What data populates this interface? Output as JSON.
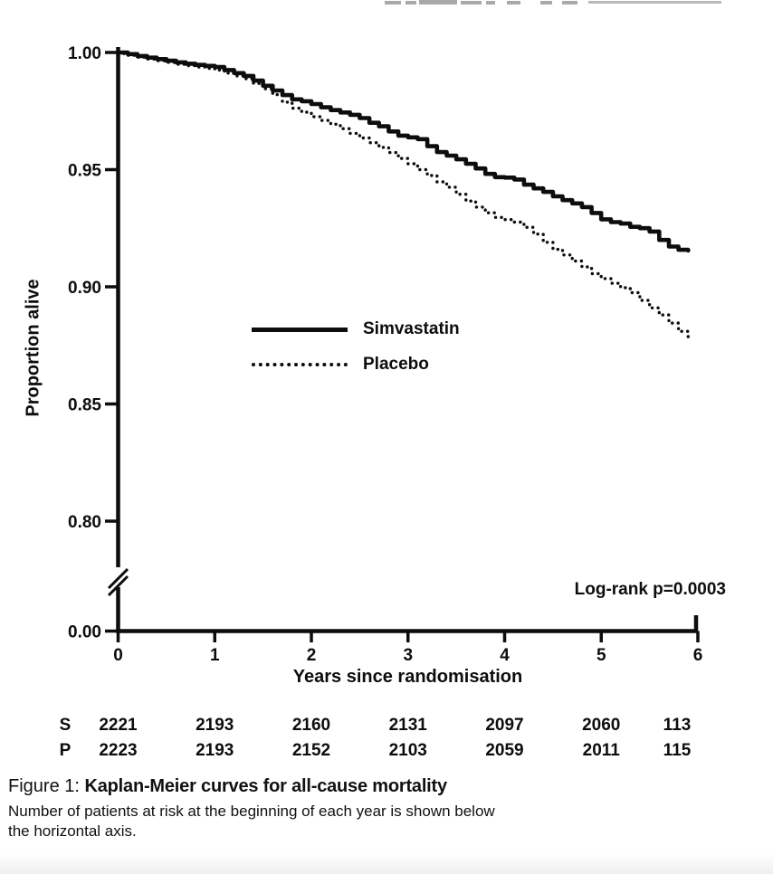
{
  "chart_data": {
    "type": "line",
    "title": "",
    "ylabel": "Proportion alive",
    "xlabel": "Years since randomisation",
    "x_ticks": [
      0,
      1,
      2,
      3,
      4,
      5,
      6
    ],
    "x_range": [
      0,
      6
    ],
    "y_ticks": [
      {
        "label": "1.00",
        "value": 1.0
      },
      {
        "label": "0.95",
        "value": 0.95
      },
      {
        "label": "0.90",
        "value": 0.9
      },
      {
        "label": "0.85",
        "value": 0.85
      },
      {
        "label": "0.80",
        "value": 0.8
      },
      {
        "label": "0.00",
        "value": 0.0
      }
    ],
    "y_axis_break_between": [
      0.0,
      0.8
    ],
    "grid": false,
    "legend_position": "inside-center-left",
    "annotation": "Log-rank p=0.0003",
    "series": [
      {
        "name": "Simvastatin",
        "style": "solid",
        "x_start": 0.0,
        "x_step": 0.1,
        "values": [
          1.0,
          0.9993,
          0.9985,
          0.9978,
          0.9972,
          0.9965,
          0.9958,
          0.9952,
          0.9947,
          0.9943,
          0.9938,
          0.9925,
          0.9912,
          0.99,
          0.988,
          0.9858,
          0.9838,
          0.9818,
          0.98,
          0.9792,
          0.978,
          0.9766,
          0.9754,
          0.9744,
          0.9734,
          0.972,
          0.97,
          0.9685,
          0.9663,
          0.9645,
          0.9638,
          0.963,
          0.96,
          0.9575,
          0.956,
          0.9544,
          0.9525,
          0.9505,
          0.9482,
          0.9468,
          0.9466,
          0.9458,
          0.9436,
          0.942,
          0.9405,
          0.9386,
          0.937,
          0.9356,
          0.934,
          0.9315,
          0.9288,
          0.9276,
          0.927,
          0.9256,
          0.925,
          0.9236,
          0.92,
          0.9172,
          0.9158,
          0.9155
        ]
      },
      {
        "name": "Placebo",
        "style": "dotted",
        "x_start": 0.0,
        "x_step": 0.1,
        "values": [
          0.9995,
          0.9988,
          0.998,
          0.9972,
          0.9965,
          0.9958,
          0.995,
          0.9944,
          0.9938,
          0.9932,
          0.9925,
          0.9912,
          0.99,
          0.9888,
          0.9868,
          0.9845,
          0.982,
          0.9788,
          0.9762,
          0.9745,
          0.9726,
          0.971,
          0.9694,
          0.9675,
          0.9655,
          0.9635,
          0.9615,
          0.9595,
          0.9573,
          0.9548,
          0.9525,
          0.95,
          0.9475,
          0.9448,
          0.9425,
          0.9395,
          0.9366,
          0.934,
          0.9316,
          0.9296,
          0.9287,
          0.9276,
          0.9254,
          0.9225,
          0.919,
          0.916,
          0.9136,
          0.911,
          0.9085,
          0.9056,
          0.9035,
          0.9015,
          0.8996,
          0.8975,
          0.8942,
          0.891,
          0.888,
          0.8845,
          0.881,
          0.877
        ]
      }
    ]
  },
  "legend": {
    "entries": [
      {
        "label": "Simvastatin",
        "style": "solid"
      },
      {
        "label": "Placebo",
        "style": "dotted"
      }
    ]
  },
  "risk_table": {
    "description": "Number of patients at risk at beginning of each year",
    "rows": [
      {
        "label": "S",
        "values": [
          "2221",
          "2193",
          "2160",
          "2131",
          "2097",
          "2060",
          "113"
        ]
      },
      {
        "label": "P",
        "values": [
          "2223",
          "2193",
          "2152",
          "2103",
          "2059",
          "2011",
          "115"
        ]
      }
    ]
  },
  "caption": {
    "prefix": "Figure 1: ",
    "title_bold": "Kaplan-Meier curves for all-cause mortality",
    "body": "Number of patients at risk at the beginning of each year is shown below the horizontal axis."
  },
  "colors": {
    "ink": "#0d0d0d",
    "background": "#ffffff",
    "artifact_gray": "#a9a9a9"
  }
}
